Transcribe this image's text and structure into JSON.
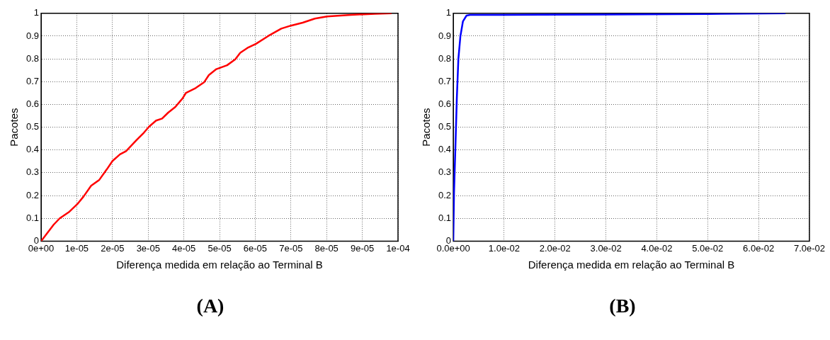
{
  "chart_data": [
    {
      "type": "line",
      "xlabel": "Diferença medida em relação ao Terminal B",
      "ylabel": "Pacotes",
      "annotations": [
        "(A)"
      ],
      "grid": true,
      "legend": false,
      "marker": "none",
      "line_style": "solid",
      "xlim": [
        0,
        0.0001
      ],
      "ylim": [
        0,
        1
      ],
      "xticks": [
        {
          "value": 0,
          "label": "0e+00"
        },
        {
          "value": 1e-05,
          "label": "1e-05"
        },
        {
          "value": 2e-05,
          "label": "2e-05"
        },
        {
          "value": 3e-05,
          "label": "3e-05"
        },
        {
          "value": 4e-05,
          "label": "4e-05"
        },
        {
          "value": 5e-05,
          "label": "5e-05"
        },
        {
          "value": 6e-05,
          "label": "6e-05"
        },
        {
          "value": 7e-05,
          "label": "7e-05"
        },
        {
          "value": 8e-05,
          "label": "8e-05"
        },
        {
          "value": 9e-05,
          "label": "9e-05"
        },
        {
          "value": 0.0001,
          "label": "1e-04"
        }
      ],
      "yticks": [
        0,
        0.1,
        0.2,
        0.3,
        0.4,
        0.5,
        0.6,
        0.7,
        0.8,
        0.9,
        1
      ],
      "series": [
        {
          "color": "#ff0000",
          "x": [
            0,
            3.5e-06,
            5.2e-06,
            7.9e-06,
            1.03e-05,
            1.19e-05,
            1.4e-05,
            1.63e-05,
            1.84e-05,
            2e-05,
            2.21e-05,
            2.38e-05,
            2.68e-05,
            2.88e-05,
            3.02e-05,
            3.22e-05,
            3.39e-05,
            3.56e-05,
            3.76e-05,
            3.96e-05,
            4.06e-05,
            4.33e-05,
            4.57e-05,
            4.7e-05,
            4.91e-05,
            5.21e-05,
            5.44e-05,
            5.58e-05,
            5.78e-05,
            6.02e-05,
            6.36e-05,
            6.73e-05,
            7e-05,
            7.33e-05,
            7.67e-05,
            8.01e-05,
            8.68e-05,
            9.36e-05,
            9.82e-05
          ],
          "values": [
            0,
            0.072,
            0.1,
            0.129,
            0.165,
            0.196,
            0.243,
            0.269,
            0.315,
            0.352,
            0.381,
            0.395,
            0.445,
            0.476,
            0.502,
            0.529,
            0.538,
            0.564,
            0.589,
            0.626,
            0.651,
            0.672,
            0.698,
            0.729,
            0.755,
            0.772,
            0.798,
            0.827,
            0.848,
            0.866,
            0.9,
            0.933,
            0.946,
            0.959,
            0.977,
            0.986,
            0.993,
            0.998,
            1
          ]
        }
      ]
    },
    {
      "type": "line",
      "xlabel": "Diferença medida em relação ao Terminal B",
      "ylabel": "Pacotes",
      "annotations": [
        "(B)"
      ],
      "grid": true,
      "legend": false,
      "marker": "none",
      "line_style": "solid",
      "xlim": [
        0,
        0.07
      ],
      "ylim": [
        0,
        1
      ],
      "xticks": [
        {
          "value": 0,
          "label": "0.0e+00"
        },
        {
          "value": 0.01,
          "label": "1.0e-02"
        },
        {
          "value": 0.02,
          "label": "2.0e-02"
        },
        {
          "value": 0.03,
          "label": "3.0e-02"
        },
        {
          "value": 0.04,
          "label": "4.0e-02"
        },
        {
          "value": 0.05,
          "label": "5.0e-02"
        },
        {
          "value": 0.06,
          "label": "6.0e-02"
        },
        {
          "value": 0.07,
          "label": "7.0e-02"
        }
      ],
      "yticks": [
        0,
        0.1,
        0.2,
        0.3,
        0.4,
        0.5,
        0.6,
        0.7,
        0.8,
        0.9,
        1
      ],
      "series": [
        {
          "color": "#0000ff",
          "x": [
            0,
            0.00014,
            0.0004,
            0.0007,
            0.001,
            0.0014,
            0.0019,
            0.0026,
            0.0033,
            0.01,
            0.03,
            0.05,
            0.0653
          ],
          "values": [
            0,
            0.21,
            0.4,
            0.63,
            0.8,
            0.9,
            0.965,
            0.99,
            0.993,
            0.993,
            0.995,
            0.997,
            1
          ]
        }
      ]
    }
  ]
}
